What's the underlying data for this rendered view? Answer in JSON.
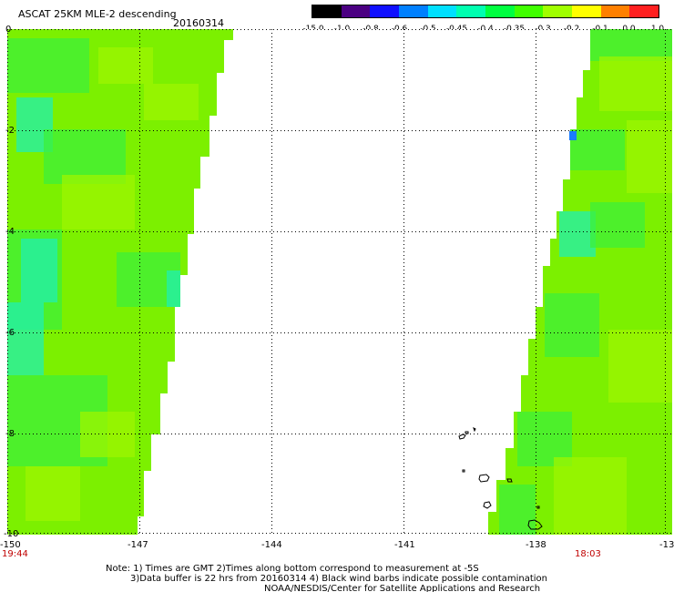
{
  "header": {
    "title": "ASCAT 25KM MLE-2 descending",
    "date": "20160314"
  },
  "colorbar": {
    "labels": [
      "-15.0",
      "-1.0",
      "-0.8",
      "-0.6",
      "-0.5",
      "-0.45",
      "-0.4",
      "-0.35",
      "-0.3",
      "-0.2",
      "-0.1",
      "0.0",
      "1.0"
    ],
    "colors": [
      "#000000",
      "#4b0082",
      "#1010ff",
      "#0080ff",
      "#00e0ff",
      "#00ffb0",
      "#00ff40",
      "#40ff00",
      "#a0ff00",
      "#ffff00",
      "#ff8000",
      "#ff2020"
    ]
  },
  "axes": {
    "lat_labels": [
      "0",
      "-2",
      "-4",
      "-6",
      "-8",
      "-10"
    ],
    "lon_labels": [
      "-150",
      "-147",
      "-144",
      "-141",
      "-138",
      "-13"
    ],
    "lat_range": [
      0,
      -10
    ],
    "lon_range": [
      -150,
      -135
    ]
  },
  "times": {
    "left": "19:44",
    "right": "18:03"
  },
  "notes": {
    "line1": "Note: 1) Times are GMT 2)Times along bottom correspond to measurement at -5S",
    "line2": "3)Data buffer is 22 hrs from 20160314 4) Black wind barbs indicate possible contamination",
    "line3": "NOAA/NESDIS/Center for Satellite Applications and Research"
  },
  "colors": {
    "swath_base": "#7cf000",
    "swath_light": "#9ef500",
    "swath_green": "#3df03a",
    "swath_cyan": "#20f0b0",
    "swath_blue": "#1a7cff",
    "grid": "#000000",
    "time_label": "#c00000"
  }
}
